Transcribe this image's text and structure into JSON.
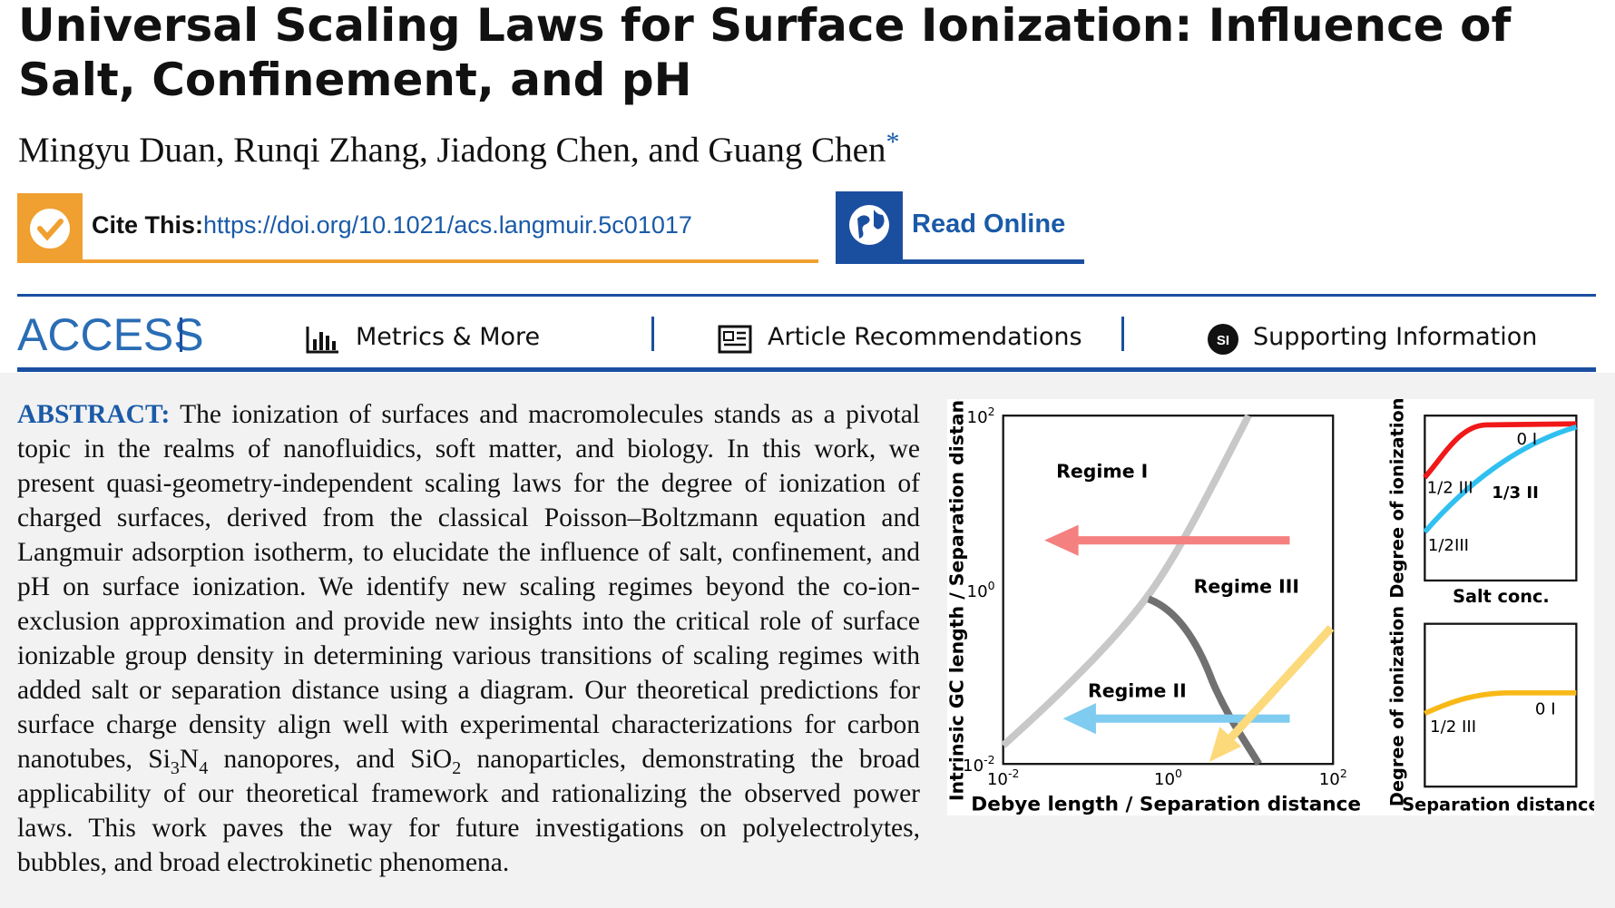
{
  "header": {
    "title": "Universal Scaling Laws for Surface Ionization: Influence of Salt, Confinement, and pH",
    "authors": "Mingyu Duan, Runqi Zhang, Jiadong Chen, and Guang Chen",
    "corresponding_mark": "*"
  },
  "cite": {
    "label": "Cite This:",
    "url": "https://doi.org/10.1021/acs.langmuir.5c01017"
  },
  "read_online": "Read Online",
  "access": {
    "label": "ACCESS",
    "links": [
      "Metrics & More",
      "Article Recommendations",
      "Supporting Information"
    ],
    "si_icon": "SI"
  },
  "abstract": {
    "label": "ABSTRACT:",
    "segments": [
      {
        "text": "The ionization of surfaces and macromolecules stands as a pivotal topic in the realms of nanofluidics, soft matter, and biology. In this work, we present quasi-geometry-independent scaling laws for the degree of ionization of charged surfaces, derived from the classical Poisson–Boltzmann equation and Langmuir adsorption isotherm, to elucidate the influence of salt, confinement, and pH on surface ionization. We identify new scaling regimes beyond the co-ion-exclusion approximation and provide new insights into the critical role of surface ionizable group density in determining various transitions of scaling regimes with added salt or separation distance using a diagram. Our theoretical predictions for surface charge density align well with experimental characterizations for carbon nanotubes, Si"
      },
      {
        "sub": "3"
      },
      {
        "text": "N"
      },
      {
        "sub": "4"
      },
      {
        "text": " nanopores, and SiO"
      },
      {
        "sub": "2"
      },
      {
        "text": " nanoparticles, demonstrating the broad applicability of our theoretical framework and rationalizing the observed power laws. This work paves the way for future investigations on polyelectrolytes, bubbles, and broad electrokinetic phenomena."
      }
    ]
  },
  "figure": {
    "main": {
      "y_label": "Intrinsic GC length / Separation distance",
      "x_label": "Debye length / Separation distance",
      "y_ticks": [
        {
          "base": "10",
          "exp": "2"
        },
        {
          "base": "10",
          "exp": "0"
        },
        {
          "base": "10",
          "exp": "-2"
        }
      ],
      "x_ticks": [
        {
          "base": "10",
          "exp": "-2"
        },
        {
          "base": "10",
          "exp": "0"
        },
        {
          "base": "10",
          "exp": "2"
        }
      ],
      "regimes": [
        "Regime I",
        "Regime III",
        "Regime II"
      ]
    },
    "top": {
      "y_label": "Degree of ionization",
      "x_label": "Salt conc.",
      "labels": [
        "0 I",
        "1/2 III",
        "1/3 II",
        "1/2III"
      ]
    },
    "bottom": {
      "y_label": "Degree of ionization",
      "x_label": "Separation distance",
      "labels": [
        "0 I",
        "1/2 III"
      ]
    }
  }
}
